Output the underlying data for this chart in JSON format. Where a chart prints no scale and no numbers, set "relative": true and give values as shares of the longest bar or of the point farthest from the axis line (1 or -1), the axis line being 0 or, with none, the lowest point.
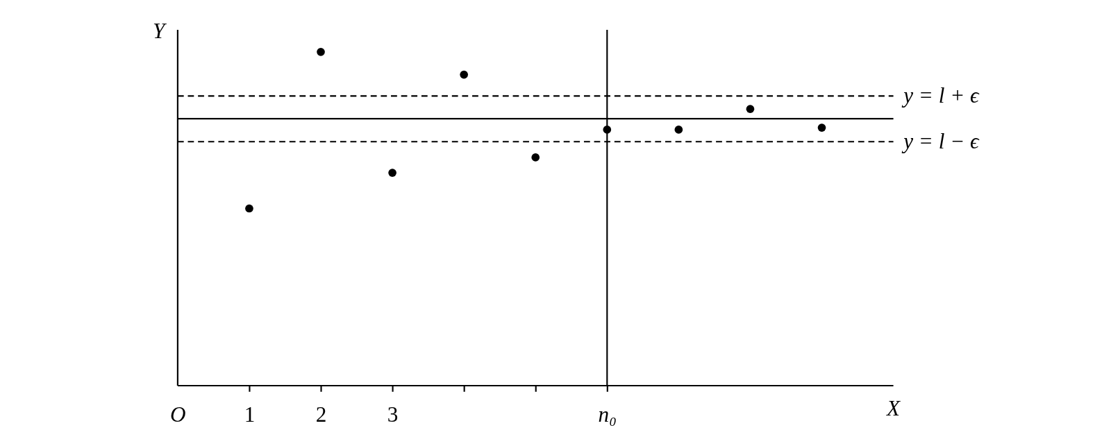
{
  "chart_data": {
    "type": "scatter",
    "relative": true,
    "xlabel": "X",
    "ylabel": "Y",
    "marker": "circle",
    "grid": false,
    "x": [
      1,
      2,
      3,
      4,
      5,
      6,
      7,
      8,
      9
    ],
    "series": [
      {
        "color": "#000000",
        "values": [
          0.531,
          1,
          0.638,
          0.932,
          0.684,
          0.767,
          0.767,
          0.829,
          0.773
        ]
      }
    ],
    "xlim": [
      0,
      10
    ],
    "xticks": [
      {
        "value": 0,
        "label": "O"
      },
      1,
      2,
      3,
      {
        "value": 4,
        "label": null
      },
      {
        "value": 5,
        "label": null
      },
      {
        "value": 6,
        "label": "n₀"
      }
    ],
    "ref_lines": [
      {
        "axis": "y",
        "value": 0.868,
        "label": "y = l + ϵ",
        "color": "#000000",
        "line_style": "dashed"
      },
      {
        "axis": "y",
        "value": 0.8,
        "label": null,
        "color": "#000000",
        "line_style": "solid"
      },
      {
        "axis": "y",
        "value": 0.731,
        "label": "y = l − ϵ",
        "color": "#000000",
        "line_style": "dashed"
      },
      {
        "axis": "x",
        "value": 6,
        "label": null,
        "color": "#000000",
        "line_style": "solid"
      }
    ]
  }
}
